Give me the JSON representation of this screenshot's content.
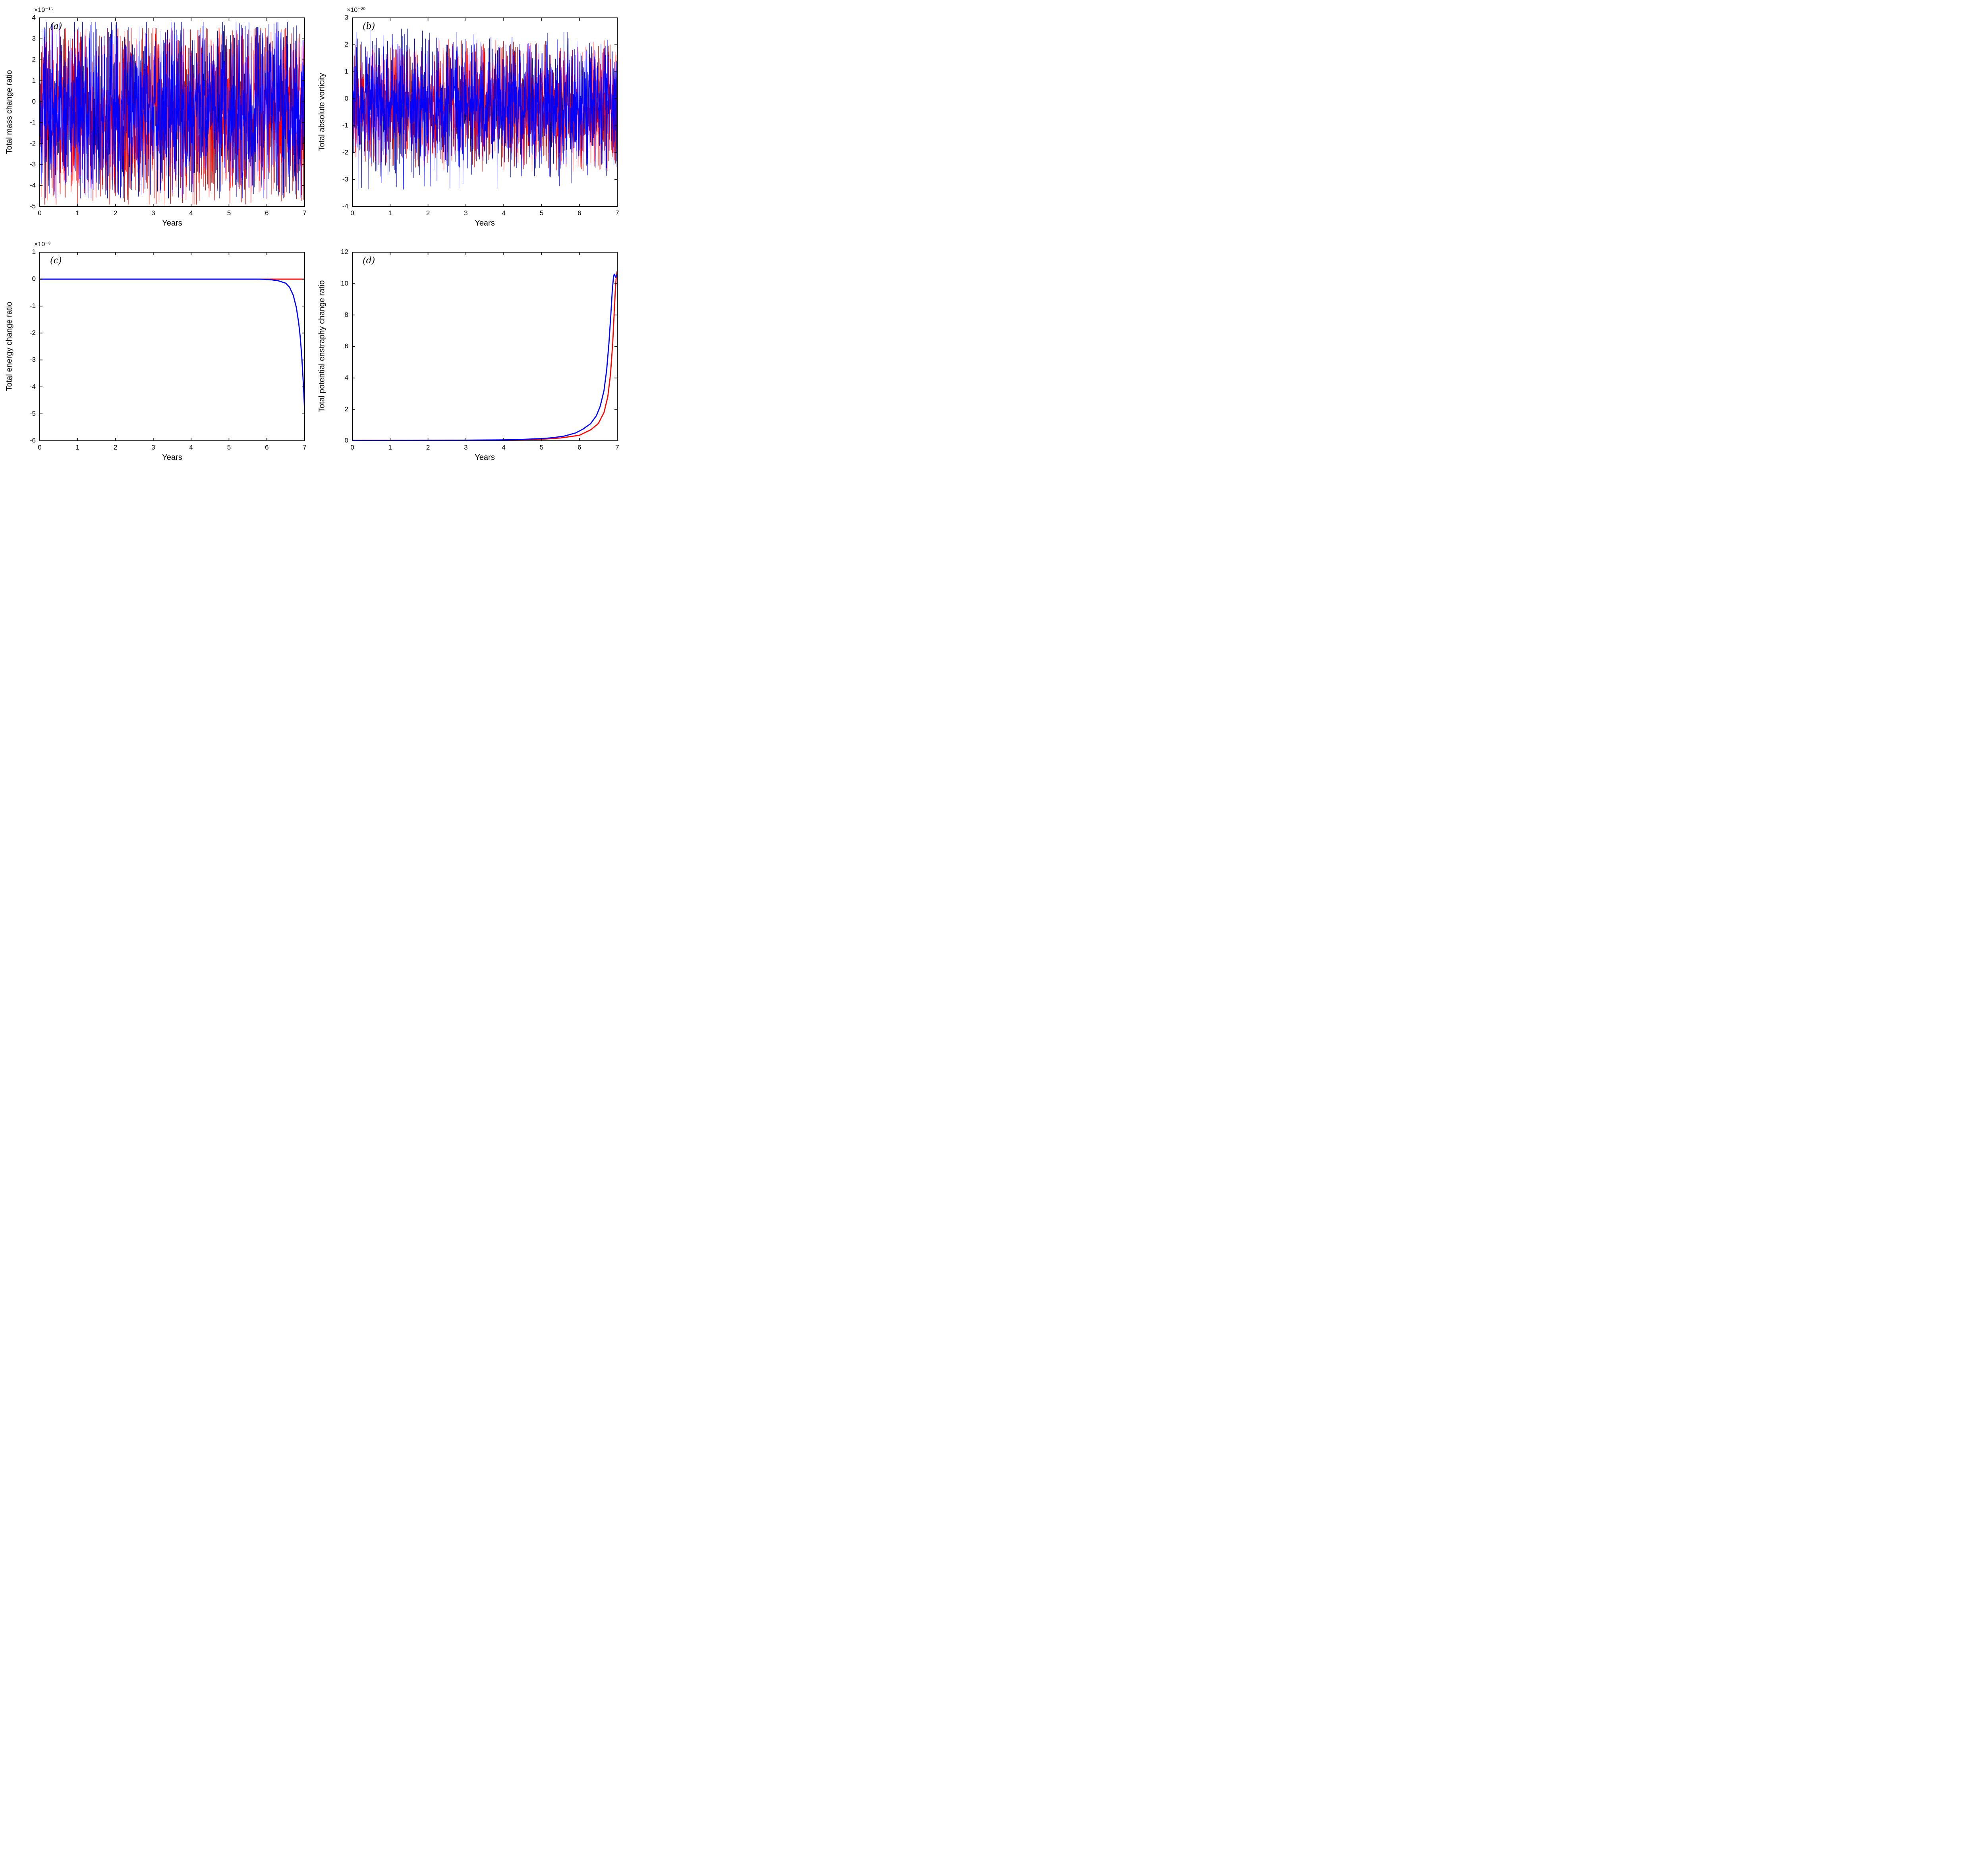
{
  "page": {
    "background": "#ffffff"
  },
  "colors": {
    "red": "#ff0000",
    "blue": "#0000ff",
    "axis": "#000000"
  },
  "chart_data": [
    {
      "id": "a",
      "type": "line",
      "panel_label": "(a)",
      "xlabel": "Years",
      "ylabel": "Total mass change ratio",
      "y_exponent_label": "×10⁻¹⁵",
      "xlim": [
        0,
        7
      ],
      "ylim": [
        -5,
        4
      ],
      "xticks": [
        0,
        1,
        2,
        3,
        4,
        5,
        6,
        7
      ],
      "yticks": [
        -5,
        -4,
        -3,
        -2,
        -1,
        0,
        1,
        2,
        3,
        4
      ],
      "grid": false,
      "legend": "none",
      "series": [
        {
          "name": "red-run",
          "color": "#ff0000",
          "kind": "noise",
          "n": 1600,
          "band": [
            -3.6,
            2.6
          ],
          "extremes": [
            -4.9,
            3.5
          ],
          "spike_prob": 0.045,
          "seed": 7,
          "linewidth": 1.1
        },
        {
          "name": "blue-run",
          "color": "#0000ff",
          "kind": "noise",
          "n": 1600,
          "band": [
            -3.5,
            2.7
          ],
          "extremes": [
            -4.6,
            3.8
          ],
          "spike_prob": 0.045,
          "seed": 13,
          "linewidth": 1.1
        }
      ]
    },
    {
      "id": "b",
      "type": "line",
      "panel_label": "(b)",
      "xlabel": "Years",
      "ylabel": "Total absolute vorticity",
      "y_exponent_label": "×10⁻²⁰",
      "xlim": [
        0,
        7
      ],
      "ylim": [
        -4,
        3
      ],
      "xticks": [
        0,
        1,
        2,
        3,
        4,
        5,
        6,
        7
      ],
      "yticks": [
        -4,
        -3,
        -2,
        -1,
        0,
        1,
        2,
        3
      ],
      "grid": false,
      "legend": "none",
      "series": [
        {
          "name": "red-run",
          "color": "#ff0000",
          "kind": "noise",
          "n": 1600,
          "band": [
            -1.9,
            1.4
          ],
          "extremes": [
            -2.7,
            2.2
          ],
          "spike_prob": 0.05,
          "seed": 21,
          "linewidth": 1.1
        },
        {
          "name": "blue-run",
          "color": "#0000ff",
          "kind": "noise",
          "n": 1600,
          "band": [
            -2.0,
            1.5
          ],
          "extremes": [
            -3.4,
            2.6
          ],
          "spike_prob": 0.05,
          "seed": 33,
          "linewidth": 1.1
        }
      ]
    },
    {
      "id": "c",
      "type": "line",
      "panel_label": "(c)",
      "xlabel": "Years",
      "ylabel": "Total energy change ratio",
      "y_exponent_label": "×10⁻³",
      "xlim": [
        0,
        7
      ],
      "ylim": [
        -6,
        1
      ],
      "xticks": [
        0,
        1,
        2,
        3,
        4,
        5,
        6,
        7
      ],
      "yticks": [
        -6,
        -5,
        -4,
        -3,
        -2,
        -1,
        0,
        1
      ],
      "grid": false,
      "legend": "none",
      "series": [
        {
          "name": "red-run",
          "color": "#ff0000",
          "kind": "points",
          "linewidth": 2.8,
          "points": [
            [
              0,
              0
            ],
            [
              6.0,
              0
            ],
            [
              6.5,
              0
            ],
            [
              7,
              0
            ]
          ]
        },
        {
          "name": "blue-run",
          "color": "#0000ff",
          "kind": "points",
          "linewidth": 2.8,
          "points": [
            [
              0,
              0
            ],
            [
              5.8,
              0
            ],
            [
              6.1,
              -0.02
            ],
            [
              6.3,
              -0.06
            ],
            [
              6.5,
              -0.15
            ],
            [
              6.6,
              -0.3
            ],
            [
              6.7,
              -0.6
            ],
            [
              6.78,
              -1.05
            ],
            [
              6.84,
              -1.6
            ],
            [
              6.88,
              -2.1
            ],
            [
              6.92,
              -2.8
            ],
            [
              6.95,
              -3.5
            ],
            [
              6.97,
              -4.0
            ],
            [
              6.99,
              -4.6
            ],
            [
              7,
              -4.9
            ]
          ]
        }
      ]
    },
    {
      "id": "d",
      "type": "line",
      "panel_label": "(d)",
      "xlabel": "Years",
      "ylabel": "Total potential enstraphy change ratio",
      "y_exponent_label": "",
      "xlim": [
        0,
        7
      ],
      "ylim": [
        0,
        12
      ],
      "xticks": [
        0,
        1,
        2,
        3,
        4,
        5,
        6,
        7
      ],
      "yticks": [
        0,
        2,
        4,
        6,
        8,
        10,
        12
      ],
      "grid": false,
      "legend": "none",
      "series": [
        {
          "name": "red-run",
          "color": "#ff0000",
          "kind": "points",
          "linewidth": 2.8,
          "points": [
            [
              0,
              0.02
            ],
            [
              2,
              0.03
            ],
            [
              3,
              0.04
            ],
            [
              4,
              0.05
            ],
            [
              5,
              0.1
            ],
            [
              5.5,
              0.18
            ],
            [
              6,
              0.35
            ],
            [
              6.3,
              0.7
            ],
            [
              6.5,
              1.1
            ],
            [
              6.65,
              1.8
            ],
            [
              6.75,
              2.8
            ],
            [
              6.82,
              4.2
            ],
            [
              6.88,
              6.2
            ],
            [
              6.92,
              8.2
            ],
            [
              6.95,
              9.6
            ],
            [
              6.97,
              10.3
            ],
            [
              6.99,
              10.7
            ],
            [
              7,
              10.8
            ]
          ]
        },
        {
          "name": "blue-run",
          "color": "#0000ff",
          "kind": "points",
          "linewidth": 2.8,
          "points": [
            [
              0,
              0.02
            ],
            [
              1,
              0.02
            ],
            [
              2,
              0.03
            ],
            [
              3,
              0.04
            ],
            [
              4,
              0.06
            ],
            [
              4.5,
              0.09
            ],
            [
              5,
              0.14
            ],
            [
              5.3,
              0.2
            ],
            [
              5.6,
              0.3
            ],
            [
              5.9,
              0.5
            ],
            [
              6.1,
              0.75
            ],
            [
              6.3,
              1.1
            ],
            [
              6.45,
              1.6
            ],
            [
              6.55,
              2.2
            ],
            [
              6.65,
              3.2
            ],
            [
              6.72,
              4.5
            ],
            [
              6.78,
              6.2
            ],
            [
              6.83,
              8.0
            ],
            [
              6.87,
              9.6
            ],
            [
              6.9,
              10.4
            ],
            [
              6.92,
              10.6
            ],
            [
              6.94,
              10.5
            ],
            [
              6.96,
              10.4
            ],
            [
              6.98,
              10.55
            ],
            [
              7,
              10.5
            ]
          ]
        }
      ]
    }
  ]
}
